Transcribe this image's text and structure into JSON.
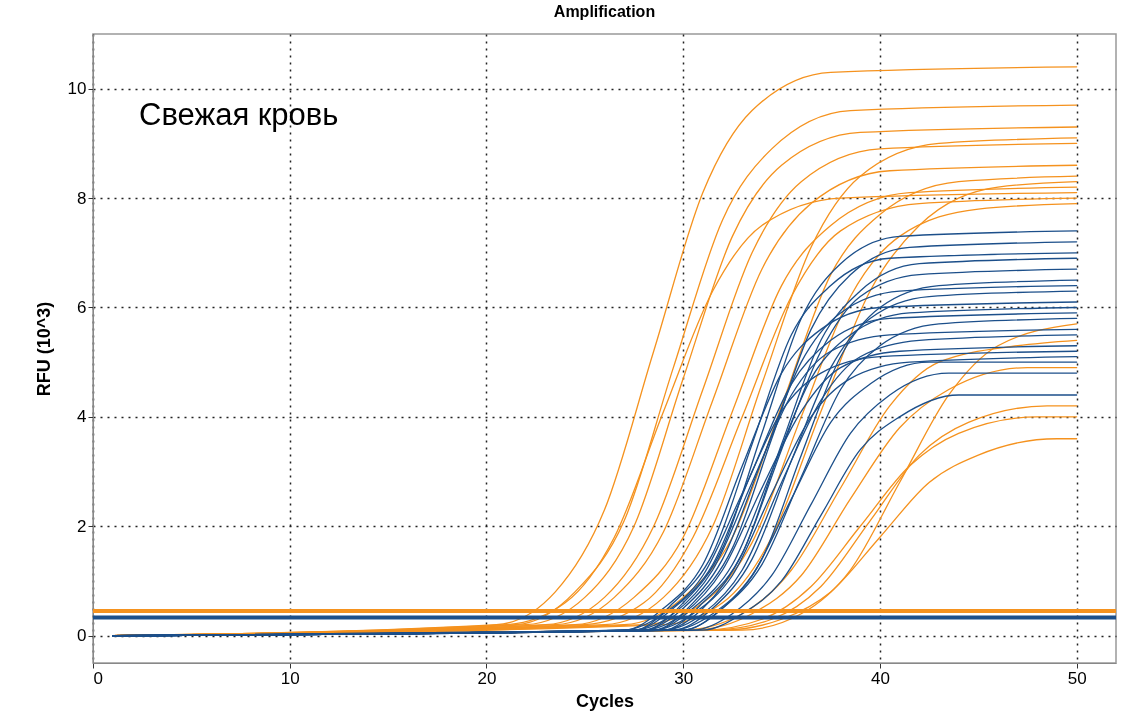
{
  "chart_data": {
    "type": "line",
    "title": "Amplification",
    "xlabel": "Cycles",
    "ylabel": "RFU (10^3)",
    "annotations": [
      "Свежая кровь"
    ],
    "xlim": [
      0,
      52
    ],
    "xticks": [
      0,
      10,
      20,
      30,
      40,
      50
    ],
    "ylim": [
      -0.5,
      11
    ],
    "yticks": [
      0,
      2,
      4,
      6,
      8,
      10
    ],
    "grid": true,
    "legend": false,
    "marker": "none",
    "line_style": "solid",
    "ref_lines": [
      {
        "axis": "y",
        "value": 0.45,
        "color": "#f5921e"
      },
      {
        "axis": "y",
        "value": 0.33,
        "color": "#1c4f8a"
      }
    ],
    "series": [
      {
        "color": "#f5921e",
        "x": [
          1,
          20.5,
          23.5,
          26,
          28.5,
          31,
          33.5,
          37.5,
          50
        ],
        "values": [
          0,
          0.2,
          0.8,
          2.3,
          5.2,
          8.1,
          9.6,
          10.3,
          10.4
        ]
      },
      {
        "color": "#f5921e",
        "x": [
          1,
          21.5,
          24.5,
          27,
          29.5,
          32,
          34.5,
          38.5,
          50
        ],
        "values": [
          0,
          0.2,
          0.8,
          2.1,
          4.9,
          7.6,
          8.9,
          9.6,
          9.7
        ]
      },
      {
        "color": "#f5921e",
        "x": [
          1,
          22,
          25,
          27.5,
          30,
          32.5,
          35,
          39,
          50
        ],
        "values": [
          0,
          0.2,
          0.7,
          2.0,
          4.7,
          7.3,
          8.6,
          9.2,
          9.3
        ]
      },
      {
        "color": "#f5921e",
        "x": [
          1,
          23,
          26,
          28.5,
          31,
          33.5,
          36,
          40,
          50
        ],
        "values": [
          0,
          0.2,
          0.7,
          2.0,
          4.5,
          7.0,
          8.3,
          8.9,
          9.0
        ]
      },
      {
        "color": "#f5921e",
        "x": [
          1,
          21,
          24,
          26.5,
          29,
          31.5,
          34,
          38,
          50
        ],
        "values": [
          0,
          0.2,
          0.6,
          1.8,
          4.1,
          6.3,
          7.5,
          8.0,
          8.1
        ]
      },
      {
        "color": "#f5921e",
        "x": [
          1,
          23.5,
          26.5,
          29,
          31.5,
          34,
          36.5,
          40.5,
          50
        ],
        "values": [
          0,
          0.2,
          0.7,
          1.9,
          4.3,
          6.7,
          7.9,
          8.5,
          8.6
        ]
      },
      {
        "color": "#f5921e",
        "x": [
          1,
          24.5,
          27.5,
          30,
          32.5,
          35,
          37.5,
          41.5,
          50
        ],
        "values": [
          0,
          0.2,
          0.7,
          1.8,
          4.1,
          6.4,
          7.5,
          8.1,
          8.2
        ]
      },
      {
        "color": "#f5921e",
        "x": [
          1,
          25,
          28,
          30.5,
          33,
          35.5,
          38,
          42,
          50
        ],
        "values": [
          0,
          0.2,
          0.6,
          1.8,
          4.0,
          6.2,
          7.4,
          7.9,
          8.0
        ]
      },
      {
        "color": "#f5921e",
        "x": [
          1,
          26,
          29,
          31.5,
          34,
          36.5,
          39,
          43,
          50
        ],
        "values": [
          0,
          0.2,
          0.7,
          2.0,
          4.6,
          7.1,
          8.4,
          9.0,
          9.1
        ]
      },
      {
        "color": "#f5921e",
        "x": [
          1,
          27,
          30,
          32.5,
          35,
          37.5,
          40,
          44,
          50
        ],
        "values": [
          0,
          0.2,
          0.7,
          1.8,
          4.2,
          6.6,
          7.7,
          8.3,
          8.4
        ]
      },
      {
        "color": "#f5921e",
        "x": [
          1,
          28,
          31,
          33.5,
          36,
          38.5,
          41,
          45,
          50
        ],
        "values": [
          0,
          0.2,
          0.6,
          1.7,
          4.0,
          6.2,
          7.3,
          7.8,
          7.9
        ]
      },
      {
        "color": "#f5921e",
        "x": [
          1,
          29,
          32,
          34.5,
          37,
          39.5,
          42,
          46,
          50
        ],
        "values": [
          0,
          0.2,
          0.6,
          1.8,
          4.1,
          6.3,
          7.5,
          8.2,
          8.3
        ]
      },
      {
        "color": "#f5921e",
        "x": [
          1,
          30,
          33,
          35.5,
          38,
          40.5,
          43,
          47,
          50
        ],
        "values": [
          0,
          0.1,
          0.4,
          1.2,
          2.7,
          4.2,
          5.0,
          5.3,
          5.4
        ]
      },
      {
        "color": "#f5921e",
        "x": [
          1,
          31,
          34,
          36.5,
          39,
          41.5,
          44,
          48,
          50
        ],
        "values": [
          0,
          0.1,
          0.3,
          0.9,
          2.0,
          3.1,
          3.7,
          4.0,
          4.0
        ]
      },
      {
        "color": "#f5921e",
        "x": [
          1,
          32,
          35,
          37.5,
          40,
          42.5,
          45,
          49,
          50
        ],
        "values": [
          0,
          0.1,
          0.3,
          0.8,
          1.8,
          2.8,
          3.3,
          3.6,
          3.6
        ]
      },
      {
        "color": "#f5921e",
        "x": [
          1,
          31.5,
          34.5,
          37,
          39.5,
          42,
          44.5,
          48.5,
          50
        ],
        "values": [
          0,
          0.1,
          0.3,
          0.9,
          2.1,
          3.3,
          3.9,
          4.2,
          4.2
        ]
      },
      {
        "color": "#f5921e",
        "x": [
          1,
          30.5,
          33.5,
          36,
          38.5,
          41,
          43.5,
          47.5,
          50
        ],
        "values": [
          0,
          0.1,
          0.4,
          1.1,
          2.5,
          3.8,
          4.5,
          4.9,
          4.9
        ]
      },
      {
        "color": "#f5921e",
        "x": [
          1,
          33,
          36,
          38.5,
          41,
          43.5,
          46,
          50
        ],
        "values": [
          0,
          0.1,
          0.4,
          1.2,
          2.8,
          4.4,
          5.3,
          5.7
        ]
      },
      {
        "color": "#1c4f8a",
        "x": [
          1,
          28,
          30,
          32,
          34,
          36,
          38,
          41,
          50
        ],
        "values": [
          0,
          0.1,
          0.6,
          1.6,
          3.7,
          5.8,
          6.8,
          7.3,
          7.4
        ]
      },
      {
        "color": "#1c4f8a",
        "x": [
          1,
          28.5,
          30.5,
          32.5,
          34.5,
          36.5,
          38.5,
          41.5,
          50
        ],
        "values": [
          0,
          0.1,
          0.6,
          1.6,
          3.6,
          5.6,
          6.6,
          7.1,
          7.2
        ]
      },
      {
        "color": "#1c4f8a",
        "x": [
          1,
          27.5,
          29.5,
          31.5,
          33.5,
          35.5,
          37.5,
          40.5,
          50
        ],
        "values": [
          0,
          0.1,
          0.6,
          1.5,
          3.5,
          5.5,
          6.4,
          6.9,
          7.0
        ]
      },
      {
        "color": "#1c4f8a",
        "x": [
          1,
          29,
          31,
          33,
          35,
          37,
          39,
          42,
          50
        ],
        "values": [
          0,
          0.1,
          0.5,
          1.5,
          3.4,
          5.2,
          6.2,
          6.6,
          6.7
        ]
      },
      {
        "color": "#1c4f8a",
        "x": [
          1,
          28,
          30,
          32,
          34,
          36,
          38,
          41,
          50
        ],
        "values": [
          0,
          0.1,
          0.5,
          1.4,
          3.2,
          5.0,
          5.9,
          6.3,
          6.4
        ]
      },
      {
        "color": "#1c4f8a",
        "x": [
          1,
          29.5,
          31.5,
          33.5,
          35.5,
          37.5,
          39.5,
          42.5,
          50
        ],
        "values": [
          0,
          0.1,
          0.5,
          1.4,
          3.2,
          4.9,
          5.8,
          6.2,
          6.3
        ]
      },
      {
        "color": "#1c4f8a",
        "x": [
          1,
          27,
          29,
          31,
          33,
          35,
          37,
          40,
          50
        ],
        "values": [
          0,
          0.1,
          0.5,
          1.3,
          3.1,
          4.8,
          5.6,
          6.0,
          6.1
        ]
      },
      {
        "color": "#1c4f8a",
        "x": [
          1,
          28.5,
          30.5,
          32.5,
          34.5,
          36.5,
          38.5,
          41.5,
          50
        ],
        "values": [
          0,
          0.1,
          0.5,
          1.3,
          3.0,
          4.7,
          5.5,
          5.9,
          6.0
        ]
      },
      {
        "color": "#1c4f8a",
        "x": [
          1,
          30,
          32,
          34,
          36,
          38,
          40,
          43,
          50
        ],
        "values": [
          0,
          0.1,
          0.5,
          1.3,
          2.9,
          4.5,
          5.3,
          5.7,
          5.8
        ]
      },
      {
        "color": "#1c4f8a",
        "x": [
          1,
          27.5,
          29.5,
          31.5,
          33.5,
          35.5,
          37.5,
          40.5,
          50
        ],
        "values": [
          0,
          0.1,
          0.4,
          1.2,
          2.8,
          4.4,
          5.2,
          5.5,
          5.6
        ]
      },
      {
        "color": "#1c4f8a",
        "x": [
          1,
          29,
          31,
          33,
          35,
          37,
          39,
          42,
          50
        ],
        "values": [
          0,
          0.1,
          0.4,
          1.2,
          2.8,
          4.3,
          5.1,
          5.4,
          5.5
        ]
      },
      {
        "color": "#1c4f8a",
        "x": [
          1,
          28,
          30,
          32,
          34,
          36,
          38,
          41,
          50
        ],
        "values": [
          0,
          0.1,
          0.4,
          1.2,
          2.7,
          4.1,
          4.9,
          5.2,
          5.3
        ]
      },
      {
        "color": "#1c4f8a",
        "x": [
          1,
          27,
          29,
          31,
          33,
          35,
          37,
          40,
          50
        ],
        "values": [
          0,
          0.1,
          0.4,
          1.1,
          2.6,
          4.1,
          4.8,
          5.1,
          5.2
        ]
      },
      {
        "color": "#1c4f8a",
        "x": [
          1,
          28.5,
          30.5,
          32.5,
          34.5,
          36.5,
          38.5,
          41.5,
          50
        ],
        "values": [
          0,
          0.1,
          0.4,
          1.1,
          2.6,
          4.0,
          4.7,
          5.0,
          5.1
        ]
      },
      {
        "color": "#1c4f8a",
        "x": [
          1,
          29.5,
          31.5,
          33.5,
          35.5,
          37.5,
          39.5,
          42.5,
          50
        ],
        "values": [
          0,
          0.1,
          0.4,
          1.1,
          2.5,
          3.9,
          4.6,
          5.0,
          5.0
        ]
      },
      {
        "color": "#1c4f8a",
        "x": [
          1,
          30.5,
          32.5,
          34.5,
          36.5,
          38.5,
          40.5,
          43.5,
          50
        ],
        "values": [
          0,
          0.1,
          0.4,
          1.1,
          2.4,
          3.7,
          4.4,
          4.8,
          4.8
        ]
      },
      {
        "color": "#1c4f8a",
        "x": [
          1,
          31,
          33,
          35,
          37,
          39,
          41,
          44,
          50
        ],
        "values": [
          0,
          0.1,
          0.4,
          1.0,
          2.2,
          3.4,
          4.0,
          4.4,
          4.4
        ]
      },
      {
        "color": "#1c4f8a",
        "x": [
          1,
          29,
          31,
          33,
          35,
          37,
          39,
          42,
          50
        ],
        "values": [
          0,
          0.1,
          0.6,
          1.5,
          3.5,
          5.4,
          6.3,
          6.8,
          6.9
        ]
      },
      {
        "color": "#1c4f8a",
        "x": [
          1,
          30,
          32,
          34,
          36,
          38,
          40,
          43,
          50
        ],
        "values": [
          0,
          0.1,
          0.5,
          1.4,
          3.3,
          5.1,
          6.0,
          6.4,
          6.5
        ]
      },
      {
        "color": "#1c4f8a",
        "x": [
          1,
          27.5,
          29.5,
          31.5,
          33.5,
          35.5,
          37.5,
          40.5,
          50
        ],
        "values": [
          0,
          0.1,
          0.5,
          1.3,
          3.0,
          4.6,
          5.4,
          5.8,
          5.9
        ]
      }
    ]
  }
}
